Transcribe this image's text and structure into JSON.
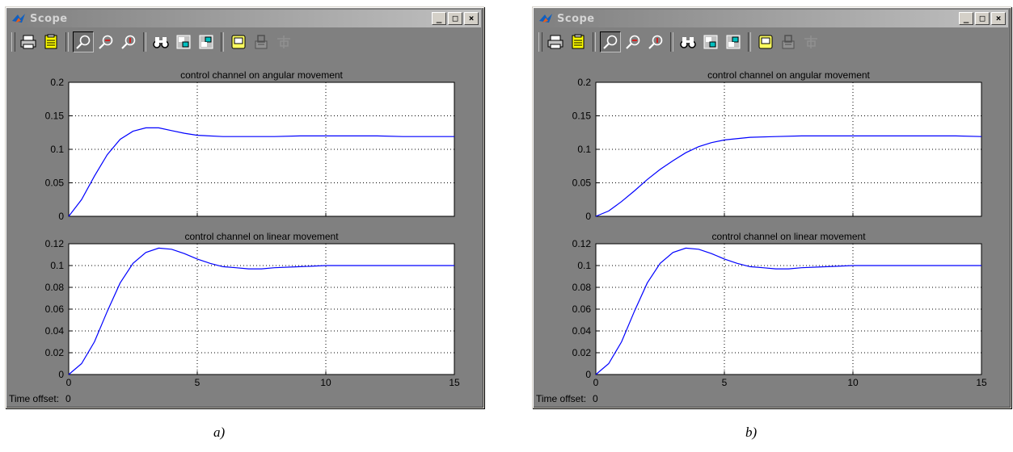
{
  "windows": [
    {
      "id": "a",
      "title": "Scope",
      "controls": {
        "minimize": "_",
        "maximize": "□",
        "close": "×"
      },
      "time_offset_label": "Time offset:",
      "time_offset_value": "0",
      "caption": "a)"
    },
    {
      "id": "b",
      "title": "Scope",
      "controls": {
        "minimize": "_",
        "maximize": "□",
        "close": "×"
      },
      "time_offset_label": "Time offset:",
      "time_offset_value": "0",
      "caption": "b)"
    }
  ],
  "toolbar_icons": [
    "print-icon",
    "parameters-icon",
    "zoom-icon",
    "zoom-x-icon",
    "zoom-y-icon",
    "autoscale-binoculars-icon",
    "save-axes-icon",
    "restore-axes-icon",
    "floating-scope-icon",
    "lock-axes-icon",
    "signal-selection-icon"
  ],
  "colors": {
    "window_bg": "#808080",
    "plot_bg": "#ffffff",
    "trace": "#0000ff",
    "grid": "#000000"
  },
  "chart_data": [
    {
      "window": "a",
      "type": "line",
      "title": "control channel on angular movement",
      "xlim": [
        0,
        15
      ],
      "ylim": [
        0,
        0.2
      ],
      "xticks": [
        "0",
        "5",
        "10",
        "15"
      ],
      "yticks": [
        "0",
        "0.05",
        "0.1",
        "0.15",
        "0.2"
      ],
      "grid": true,
      "series": [
        {
          "x": [
            0,
            0.5,
            1,
            1.5,
            2,
            2.5,
            3,
            3.5,
            4,
            4.5,
            5,
            6,
            7,
            8,
            9,
            10,
            11,
            12,
            13,
            14,
            15
          ],
          "y": [
            0,
            0.025,
            0.06,
            0.092,
            0.115,
            0.127,
            0.132,
            0.132,
            0.128,
            0.124,
            0.121,
            0.119,
            0.119,
            0.119,
            0.12,
            0.12,
            0.12,
            0.12,
            0.119,
            0.119,
            0.119
          ]
        }
      ]
    },
    {
      "window": "a",
      "type": "line",
      "title": "control channel on linear movement",
      "xlim": [
        0,
        15
      ],
      "ylim": [
        0,
        0.12
      ],
      "xticks": [
        "0",
        "5",
        "10",
        "15"
      ],
      "yticks": [
        "0",
        "0.02",
        "0.04",
        "0.06",
        "0.08",
        "0.1",
        "0.12"
      ],
      "grid": true,
      "series": [
        {
          "x": [
            0,
            0.5,
            1,
            1.5,
            2,
            2.5,
            3,
            3.5,
            4,
            4.5,
            5,
            5.5,
            6,
            6.5,
            7,
            7.5,
            8,
            9,
            10,
            11,
            12,
            13,
            14,
            15
          ],
          "y": [
            0,
            0.01,
            0.03,
            0.058,
            0.084,
            0.102,
            0.112,
            0.116,
            0.115,
            0.111,
            0.106,
            0.102,
            0.099,
            0.098,
            0.097,
            0.097,
            0.098,
            0.099,
            0.1,
            0.1,
            0.1,
            0.1,
            0.1,
            0.1
          ]
        }
      ]
    },
    {
      "window": "b",
      "type": "line",
      "title": "control channel on angular movement",
      "xlim": [
        0,
        15
      ],
      "ylim": [
        0,
        0.2
      ],
      "xticks": [
        "0",
        "5",
        "10",
        "15"
      ],
      "yticks": [
        "0",
        "0.05",
        "0.1",
        "0.15",
        "0.2"
      ],
      "grid": true,
      "series": [
        {
          "x": [
            0,
            0.5,
            1,
            1.5,
            2,
            2.5,
            3,
            3.5,
            4,
            4.5,
            5,
            6,
            7,
            8,
            9,
            10,
            11,
            12,
            13,
            14,
            15
          ],
          "y": [
            0,
            0.008,
            0.022,
            0.038,
            0.055,
            0.07,
            0.083,
            0.095,
            0.104,
            0.11,
            0.114,
            0.118,
            0.119,
            0.12,
            0.12,
            0.12,
            0.12,
            0.12,
            0.12,
            0.12,
            0.119
          ]
        }
      ]
    },
    {
      "window": "b",
      "type": "line",
      "title": "control channel on linear movement",
      "xlim": [
        0,
        15
      ],
      "ylim": [
        0,
        0.12
      ],
      "xticks": [
        "0",
        "5",
        "10",
        "15"
      ],
      "yticks": [
        "0",
        "0.02",
        "0.04",
        "0.06",
        "0.08",
        "0.1",
        "0.12"
      ],
      "grid": true,
      "series": [
        {
          "x": [
            0,
            0.5,
            1,
            1.5,
            2,
            2.5,
            3,
            3.5,
            4,
            4.5,
            5,
            5.5,
            6,
            6.5,
            7,
            7.5,
            8,
            9,
            10,
            11,
            12,
            13,
            14,
            15
          ],
          "y": [
            0,
            0.01,
            0.03,
            0.058,
            0.084,
            0.102,
            0.112,
            0.116,
            0.115,
            0.111,
            0.106,
            0.102,
            0.099,
            0.098,
            0.097,
            0.097,
            0.098,
            0.099,
            0.1,
            0.1,
            0.1,
            0.1,
            0.1,
            0.1
          ]
        }
      ]
    }
  ]
}
